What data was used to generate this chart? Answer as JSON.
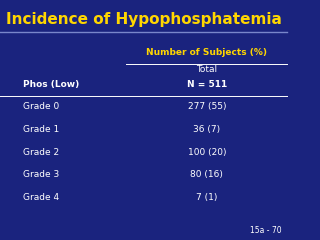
{
  "title": "Incidence of Hypophosphatemia",
  "bg_color": "#1a237e",
  "title_color": "#ffd600",
  "title_fontsize": 11,
  "line_color": "#7986cb",
  "header_col1": "Number of Subjects (%)",
  "subheader_col1": "Total",
  "subheader_col2": "N = 511",
  "col_header_left": "Phos (Low)",
  "rows": [
    [
      "Grade 0",
      "277 (55)"
    ],
    [
      "Grade 1",
      "36 (7)"
    ],
    [
      "Grade 2",
      "100 (20)"
    ],
    [
      "Grade 3",
      "80 (16)"
    ],
    [
      "Grade 4",
      "7 (1)"
    ]
  ],
  "footer": "15a - 70",
  "text_color_white": "#ffffff",
  "header_color": "#ffd600"
}
